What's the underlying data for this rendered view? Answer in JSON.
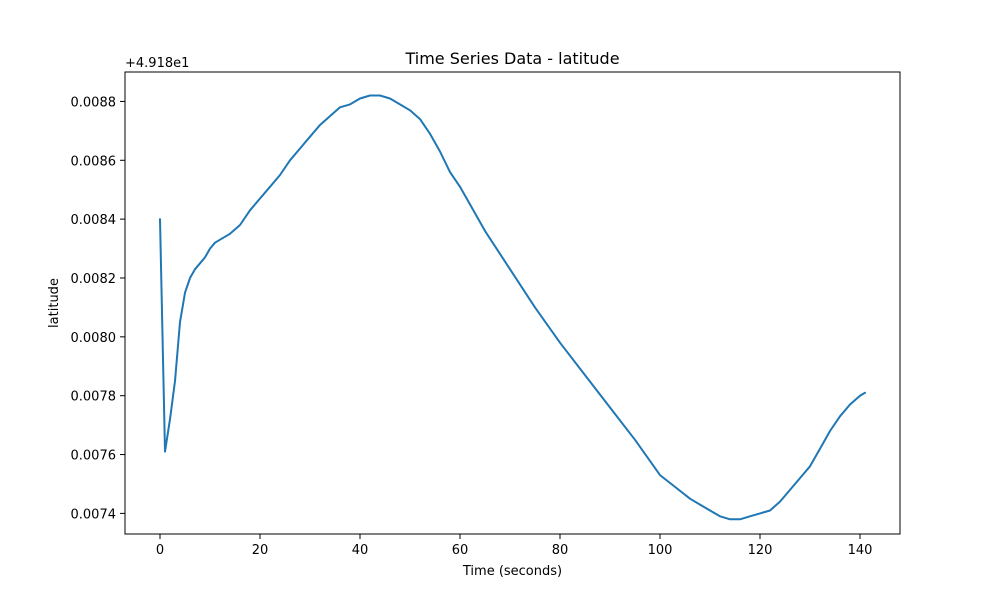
{
  "chart_data": {
    "type": "line",
    "title": "Time Series Data - latitude",
    "xlabel": "Time (seconds)",
    "ylabel": "latitude",
    "y_offset_label": "+4.918e1",
    "xlim": [
      -7,
      148
    ],
    "ylim": [
      0.00733,
      0.0089
    ],
    "x_ticks": [
      0,
      20,
      40,
      60,
      80,
      100,
      120,
      140
    ],
    "x_tick_labels": [
      "0",
      "20",
      "40",
      "60",
      "80",
      "100",
      "120",
      "140"
    ],
    "y_ticks": [
      0.0074,
      0.0076,
      0.0078,
      0.008,
      0.0082,
      0.0084,
      0.0086,
      0.0088
    ],
    "y_tick_labels": [
      "0.0074",
      "0.0076",
      "0.0078",
      "0.0080",
      "0.0082",
      "0.0084",
      "0.0086",
      "0.0088"
    ],
    "grid": false,
    "series": [
      {
        "color": "#1f77b4",
        "x": [
          0,
          1,
          2,
          3,
          4,
          5,
          6,
          7,
          8,
          9,
          10,
          11,
          12,
          14,
          16,
          18,
          20,
          22,
          24,
          26,
          28,
          30,
          32,
          34,
          36,
          38,
          40,
          42,
          44,
          46,
          48,
          50,
          52,
          54,
          56,
          58,
          60,
          62,
          65,
          70,
          75,
          80,
          85,
          90,
          95,
          100,
          103,
          106,
          108,
          110,
          112,
          114,
          116,
          118,
          120,
          122,
          124,
          126,
          128,
          130,
          132,
          134,
          136,
          138,
          140,
          141
        ],
        "y": [
          0.0084,
          0.00761,
          0.00772,
          0.00785,
          0.00805,
          0.00815,
          0.0082,
          0.00823,
          0.00825,
          0.00827,
          0.0083,
          0.00832,
          0.00833,
          0.00835,
          0.00838,
          0.00843,
          0.00847,
          0.00851,
          0.00855,
          0.0086,
          0.00864,
          0.00868,
          0.00872,
          0.00875,
          0.00878,
          0.00879,
          0.00881,
          0.00882,
          0.00882,
          0.00881,
          0.00879,
          0.00877,
          0.00874,
          0.00869,
          0.00863,
          0.00856,
          0.00851,
          0.00845,
          0.00836,
          0.00823,
          0.0081,
          0.00798,
          0.00787,
          0.00776,
          0.00765,
          0.00753,
          0.00749,
          0.00745,
          0.00743,
          0.00741,
          0.00739,
          0.00738,
          0.00738,
          0.00739,
          0.0074,
          0.00741,
          0.00744,
          0.00748,
          0.00752,
          0.00756,
          0.00762,
          0.00768,
          0.00773,
          0.00777,
          0.0078,
          0.00781
        ]
      }
    ]
  }
}
